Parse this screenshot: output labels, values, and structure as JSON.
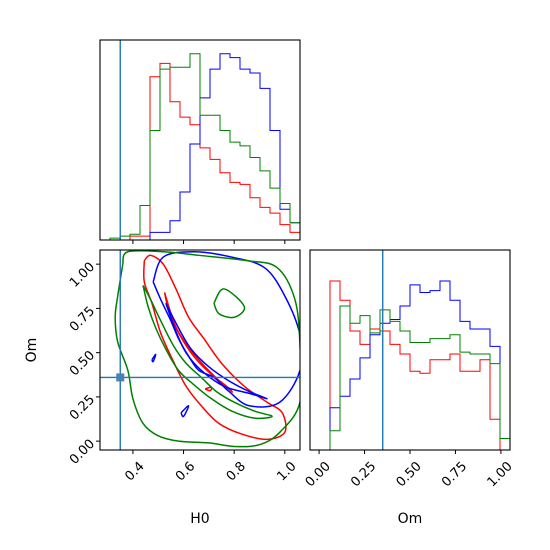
{
  "chart_data": [
    {
      "type": "histogram",
      "panel": "marginal-H0",
      "xlim": [
        0.27,
        1.06
      ],
      "truth_x": 0.35,
      "x_ticks": [
        0.4,
        0.6,
        0.8,
        1.0
      ],
      "bin_edges": [
        0.27,
        0.3095,
        0.349,
        0.3885,
        0.428,
        0.4675,
        0.507,
        0.5465,
        0.586,
        0.6255,
        0.665,
        0.7045,
        0.744,
        0.7835,
        0.823,
        0.8625,
        0.902,
        0.9415,
        0.981,
        1.0205,
        1.06
      ],
      "series": [
        {
          "color": "#ff0000",
          "values": [
            0.0,
            0.0,
            0.0,
            0.02,
            0.02,
            0.85,
            0.92,
            0.72,
            0.64,
            0.6,
            0.48,
            0.42,
            0.35,
            0.3,
            0.29,
            0.22,
            0.17,
            0.14,
            0.08,
            0.04
          ]
        },
        {
          "color": "#0000ff",
          "values": [
            0.0,
            0.0,
            0.0,
            0.0,
            0.0,
            0.04,
            0.04,
            0.1,
            0.25,
            0.5,
            0.74,
            0.89,
            0.97,
            0.95,
            0.89,
            0.87,
            0.79,
            0.57,
            0.16,
            0.09
          ]
        },
        {
          "color": "#008000",
          "values": [
            0.0,
            0.01,
            0.02,
            0.03,
            0.18,
            0.57,
            0.89,
            0.9,
            0.9,
            0.97,
            0.65,
            0.65,
            0.57,
            0.51,
            0.49,
            0.43,
            0.36,
            0.27,
            0.19,
            0.09
          ]
        }
      ]
    },
    {
      "type": "histogram",
      "panel": "marginal-Om",
      "xlim": [
        -0.05,
        1.05
      ],
      "truth_x": 0.35,
      "x_ticks": [
        0.0,
        0.25,
        0.5,
        0.75,
        1.0
      ],
      "x_tick_labels": [
        "0.00",
        "0.25",
        "0.50",
        "0.75",
        "1.00"
      ],
      "bin_edges": [
        -0.05,
        0.005,
        0.06,
        0.115,
        0.17,
        0.225,
        0.28,
        0.335,
        0.39,
        0.445,
        0.5,
        0.555,
        0.61,
        0.665,
        0.72,
        0.775,
        0.83,
        0.885,
        0.94,
        0.995,
        1.05
      ],
      "series": [
        {
          "color": "#ff0000",
          "values": [
            0.0,
            0.0,
            0.88,
            0.78,
            0.62,
            0.55,
            0.63,
            0.62,
            0.55,
            0.5,
            0.41,
            0.4,
            0.47,
            0.47,
            0.5,
            0.41,
            0.41,
            0.47,
            0.16,
            0.0
          ]
        },
        {
          "color": "#0000ff",
          "values": [
            0.0,
            0.0,
            0.22,
            0.28,
            0.37,
            0.48,
            0.6,
            0.66,
            0.68,
            0.75,
            0.86,
            0.82,
            0.83,
            0.88,
            0.78,
            0.67,
            0.63,
            0.63,
            0.54,
            0.06
          ]
        },
        {
          "color": "#008000",
          "values": [
            0.0,
            0.0,
            0.1,
            0.75,
            0.66,
            0.7,
            0.61,
            0.73,
            0.67,
            0.62,
            0.56,
            0.56,
            0.58,
            0.58,
            0.6,
            0.51,
            0.5,
            0.5,
            0.45,
            0.06
          ]
        }
      ]
    },
    {
      "type": "contour",
      "panel": "joint-H0-Om",
      "xlabel": "H0",
      "ylabel": "Om",
      "xlim": [
        0.27,
        1.06
      ],
      "ylim": [
        -0.05,
        1.08
      ],
      "x_ticks": [
        0.4,
        0.6,
        0.8,
        1.0
      ],
      "y_ticks": [
        0.0,
        0.25,
        0.5,
        0.75,
        1.0
      ],
      "y_tick_labels": [
        "0.00",
        "0.25",
        "0.50",
        "0.75",
        "1.00"
      ],
      "truth": {
        "x": 0.35,
        "y": 0.36
      },
      "series": [
        {
          "color": "#ff0000",
          "contours": [
            [
              [
                0.445,
                1.02
              ],
              [
                0.47,
                1.05
              ],
              [
                0.52,
                1.0
              ],
              [
                0.57,
                0.86
              ],
              [
                0.62,
                0.7
              ],
              [
                0.68,
                0.58
              ],
              [
                0.75,
                0.44
              ],
              [
                0.84,
                0.31
              ],
              [
                0.93,
                0.22
              ],
              [
                0.99,
                0.16
              ],
              [
                1.0,
                0.05
              ],
              [
                0.93,
                0.01
              ],
              [
                0.83,
                0.04
              ],
              [
                0.74,
                0.1
              ],
              [
                0.67,
                0.2
              ],
              [
                0.61,
                0.31
              ],
              [
                0.56,
                0.45
              ],
              [
                0.51,
                0.61
              ],
              [
                0.475,
                0.78
              ],
              [
                0.445,
                0.9
              ],
              [
                0.445,
                1.02
              ]
            ],
            [
              [
                0.525,
                0.84
              ],
              [
                0.565,
                0.66
              ],
              [
                0.605,
                0.56
              ],
              [
                0.66,
                0.46
              ],
              [
                0.72,
                0.37
              ],
              [
                0.79,
                0.28
              ],
              [
                0.77,
                0.31
              ],
              [
                0.7,
                0.39
              ],
              [
                0.64,
                0.48
              ],
              [
                0.585,
                0.6
              ],
              [
                0.545,
                0.72
              ],
              [
                0.525,
                0.84
              ]
            ],
            [
              [
                0.685,
                0.295
              ],
              [
                0.71,
                0.305
              ],
              [
                0.705,
                0.285
              ],
              [
                0.685,
                0.295
              ]
            ]
          ]
        },
        {
          "color": "#0000ff",
          "contours": [
            [
              [
                0.48,
                0.9
              ],
              [
                0.52,
                1.04
              ],
              [
                0.64,
                1.07
              ],
              [
                0.79,
                1.04
              ],
              [
                0.92,
                0.98
              ],
              [
                1.0,
                0.82
              ],
              [
                1.06,
                0.6
              ],
              [
                1.06,
                0.4
              ],
              [
                0.98,
                0.22
              ],
              [
                0.86,
                0.2
              ],
              [
                0.78,
                0.28
              ],
              [
                0.72,
                0.36
              ],
              [
                0.66,
                0.4
              ],
              [
                0.62,
                0.48
              ],
              [
                0.58,
                0.58
              ],
              [
                0.55,
                0.68
              ],
              [
                0.51,
                0.8
              ],
              [
                0.48,
                0.9
              ]
            ],
            [
              [
                0.53,
                0.78
              ],
              [
                0.58,
                0.64
              ],
              [
                0.63,
                0.52
              ],
              [
                0.7,
                0.42
              ],
              [
                0.78,
                0.34
              ],
              [
                0.86,
                0.28
              ],
              [
                0.93,
                0.24
              ],
              [
                0.86,
                0.27
              ],
              [
                0.76,
                0.31
              ],
              [
                0.67,
                0.4
              ],
              [
                0.61,
                0.5
              ],
              [
                0.57,
                0.62
              ],
              [
                0.53,
                0.78
              ]
            ],
            [
              [
                0.59,
                0.16
              ],
              [
                0.62,
                0.2
              ],
              [
                0.6,
                0.14
              ],
              [
                0.59,
                0.16
              ]
            ],
            [
              [
                0.475,
                0.46
              ],
              [
                0.49,
                0.49
              ],
              [
                0.48,
                0.45
              ],
              [
                0.475,
                0.46
              ]
            ]
          ]
        },
        {
          "color": "#008000",
          "contours": [
            [
              [
                0.36,
                1.0
              ],
              [
                0.38,
                1.07
              ],
              [
                0.52,
                1.07
              ],
              [
                0.66,
                1.05
              ],
              [
                0.85,
                1.02
              ],
              [
                0.97,
                0.98
              ],
              [
                1.04,
                0.8
              ],
              [
                1.06,
                0.54
              ],
              [
                1.06,
                0.22
              ],
              [
                0.98,
                0.05
              ],
              [
                0.9,
                -0.02
              ],
              [
                0.8,
                -0.03
              ],
              [
                0.7,
                -0.01
              ],
              [
                0.58,
                0.0
              ],
              [
                0.5,
                0.03
              ],
              [
                0.44,
                0.1
              ],
              [
                0.4,
                0.24
              ],
              [
                0.38,
                0.4
              ],
              [
                0.34,
                0.56
              ],
              [
                0.33,
                0.7
              ],
              [
                0.34,
                0.82
              ],
              [
                0.36,
                1.0
              ]
            ],
            [
              [
                0.44,
                0.88
              ],
              [
                0.47,
                0.8
              ],
              [
                0.51,
                0.68
              ],
              [
                0.56,
                0.54
              ],
              [
                0.61,
                0.44
              ],
              [
                0.67,
                0.36
              ],
              [
                0.73,
                0.28
              ],
              [
                0.8,
                0.22
              ],
              [
                0.88,
                0.17
              ],
              [
                0.95,
                0.14
              ],
              [
                0.88,
                0.13
              ],
              [
                0.79,
                0.17
              ],
              [
                0.71,
                0.24
              ],
              [
                0.64,
                0.32
              ],
              [
                0.58,
                0.4
              ],
              [
                0.53,
                0.52
              ],
              [
                0.49,
                0.64
              ],
              [
                0.46,
                0.76
              ],
              [
                0.44,
                0.88
              ]
            ],
            [
              [
                0.72,
                0.78
              ],
              [
                0.76,
                0.86
              ],
              [
                0.84,
                0.76
              ],
              [
                0.8,
                0.7
              ],
              [
                0.74,
                0.72
              ],
              [
                0.72,
                0.78
              ]
            ]
          ]
        }
      ]
    }
  ]
}
